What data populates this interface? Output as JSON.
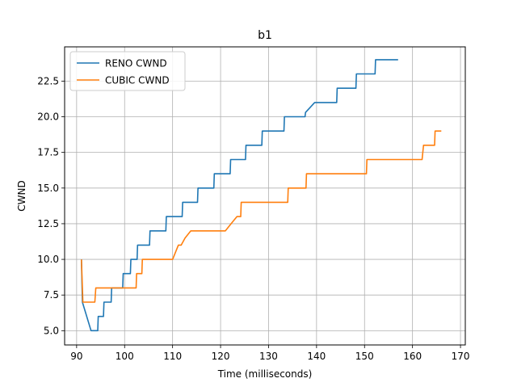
{
  "chart_data": {
    "type": "line",
    "title": "b1",
    "xlabel": "Time (milliseconds)",
    "ylabel": "CWND",
    "xlim": [
      87.5,
      171
    ],
    "ylim": [
      4.0,
      24.9
    ],
    "xticks": [
      90,
      100,
      110,
      120,
      130,
      140,
      150,
      160,
      170
    ],
    "yticks": [
      5.0,
      7.5,
      10.0,
      12.5,
      15.0,
      17.5,
      20.0,
      22.5
    ],
    "xtick_labels": [
      "90",
      "100",
      "110",
      "120",
      "130",
      "140",
      "150",
      "160",
      "170"
    ],
    "ytick_labels": [
      "5.0",
      "7.5",
      "10.0",
      "12.5",
      "15.0",
      "17.5",
      "20.0",
      "22.5"
    ],
    "grid": true,
    "legend_position": "top-left",
    "series": [
      {
        "name": "RENO CWND",
        "color": "#1f77b4",
        "points": [
          [
            91.0,
            10
          ],
          [
            91.2,
            7
          ],
          [
            93.0,
            5
          ],
          [
            94.4,
            5
          ],
          [
            94.5,
            6
          ],
          [
            95.6,
            6
          ],
          [
            95.7,
            7
          ],
          [
            97.2,
            7
          ],
          [
            97.3,
            8
          ],
          [
            99.6,
            8
          ],
          [
            99.7,
            9
          ],
          [
            101.2,
            9
          ],
          [
            101.3,
            10
          ],
          [
            102.6,
            10
          ],
          [
            102.7,
            11
          ],
          [
            104.0,
            11
          ],
          [
            105.2,
            11
          ],
          [
            105.3,
            12
          ],
          [
            107.0,
            12
          ],
          [
            108.6,
            12
          ],
          [
            108.7,
            13
          ],
          [
            110.6,
            13
          ],
          [
            112.0,
            13
          ],
          [
            112.1,
            14
          ],
          [
            113.6,
            14
          ],
          [
            115.2,
            14
          ],
          [
            115.3,
            15
          ],
          [
            117.0,
            15
          ],
          [
            118.6,
            15
          ],
          [
            118.7,
            16
          ],
          [
            120.4,
            16
          ],
          [
            122.0,
            16
          ],
          [
            122.1,
            17
          ],
          [
            123.6,
            17
          ],
          [
            125.2,
            17
          ],
          [
            125.3,
            18
          ],
          [
            127.0,
            18
          ],
          [
            128.6,
            18
          ],
          [
            128.7,
            19
          ],
          [
            131.0,
            19
          ],
          [
            133.2,
            19
          ],
          [
            133.3,
            20
          ],
          [
            136.0,
            20
          ],
          [
            137.6,
            20
          ],
          [
            137.7,
            20.3
          ],
          [
            139.6,
            21
          ],
          [
            142.0,
            21
          ],
          [
            144.2,
            21
          ],
          [
            144.3,
            22
          ],
          [
            146.5,
            22
          ],
          [
            148.2,
            22
          ],
          [
            148.3,
            23
          ],
          [
            150.4,
            23
          ],
          [
            152.2,
            23
          ],
          [
            152.3,
            24
          ],
          [
            154.6,
            24
          ],
          [
            157.0,
            24
          ]
        ]
      },
      {
        "name": "CUBIC CWND",
        "color": "#ff7f0e",
        "points": [
          [
            91.0,
            10
          ],
          [
            91.3,
            7
          ],
          [
            92.6,
            7
          ],
          [
            93.8,
            7
          ],
          [
            94.0,
            8
          ],
          [
            96.5,
            8
          ],
          [
            99.6,
            8
          ],
          [
            102.4,
            8
          ],
          [
            102.5,
            9
          ],
          [
            103.6,
            9
          ],
          [
            103.7,
            10
          ],
          [
            107.0,
            10
          ],
          [
            110.0,
            10
          ],
          [
            111.2,
            11
          ],
          [
            111.8,
            11
          ],
          [
            112.6,
            11.5
          ],
          [
            113.8,
            12
          ],
          [
            116.0,
            12
          ],
          [
            121.0,
            12
          ],
          [
            122.2,
            12.5
          ],
          [
            123.4,
            13
          ],
          [
            124.2,
            13
          ],
          [
            124.3,
            14
          ],
          [
            127.0,
            14
          ],
          [
            130.0,
            14
          ],
          [
            133.0,
            14
          ],
          [
            134.0,
            14
          ],
          [
            134.1,
            15
          ],
          [
            136.0,
            15
          ],
          [
            137.8,
            15
          ],
          [
            137.9,
            16
          ],
          [
            142.0,
            16
          ],
          [
            146.0,
            16
          ],
          [
            150.4,
            16
          ],
          [
            150.5,
            17
          ],
          [
            154.0,
            17
          ],
          [
            158.0,
            17
          ],
          [
            162.0,
            17
          ],
          [
            162.3,
            18
          ],
          [
            163.8,
            18
          ],
          [
            164.6,
            18
          ],
          [
            164.7,
            19
          ],
          [
            166.0,
            19
          ]
        ]
      }
    ]
  }
}
